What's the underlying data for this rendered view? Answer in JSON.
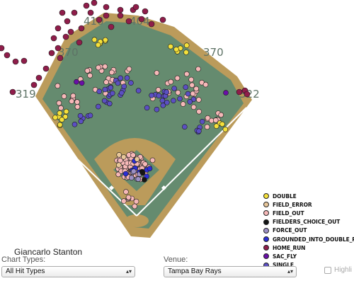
{
  "player_name": "Giancarlo Stanton",
  "controls": {
    "chart_types_label": "Chart Types:",
    "chart_types_value": "All Hit Types",
    "venue_label": "Venue:",
    "venue_value": "Tampa Bay Rays",
    "highlight_label": "Highli"
  },
  "colors": {
    "grass": "#658b6f",
    "dirt": "#bb9b5b",
    "foul_line": "#ffffff",
    "distance_label": "#5e7366"
  },
  "chart_data": {
    "type": "scatter",
    "title": "",
    "fence_distances": [
      "319",
      "370",
      "410",
      "404",
      "370",
      "322"
    ],
    "legend": [
      {
        "key": "DOUBLE",
        "label": "DOUBLE",
        "color": "#f5e13b"
      },
      {
        "key": "FIELD_ERROR",
        "label": "FIELD_ERROR",
        "color": "#e8c79a"
      },
      {
        "key": "FIELD_OUT",
        "label": "FIELD_OUT",
        "color": "#f6b8b8"
      },
      {
        "key": "FIELDERS_CHOICE_OUT",
        "label": "FIELDERS_CHOICE_OUT",
        "color": "#141414"
      },
      {
        "key": "FORCE_OUT",
        "label": "FORCE_OUT",
        "color": "#9b8fc4"
      },
      {
        "key": "GROUNDED_INTO_DOUBLE_PLAY",
        "label": "GROUNDED_INTO_DOUBLE_PLAY",
        "color": "#2b2ed6"
      },
      {
        "key": "HOME_RUN",
        "label": "HOME_RUN",
        "color": "#8f1d4a"
      },
      {
        "key": "SAC_FLY",
        "label": "SAC_FLY",
        "color": "#6a0ea8"
      },
      {
        "key": "SINGLE",
        "label": "SINGLE",
        "color": "#5b4fc2"
      }
    ]
  }
}
